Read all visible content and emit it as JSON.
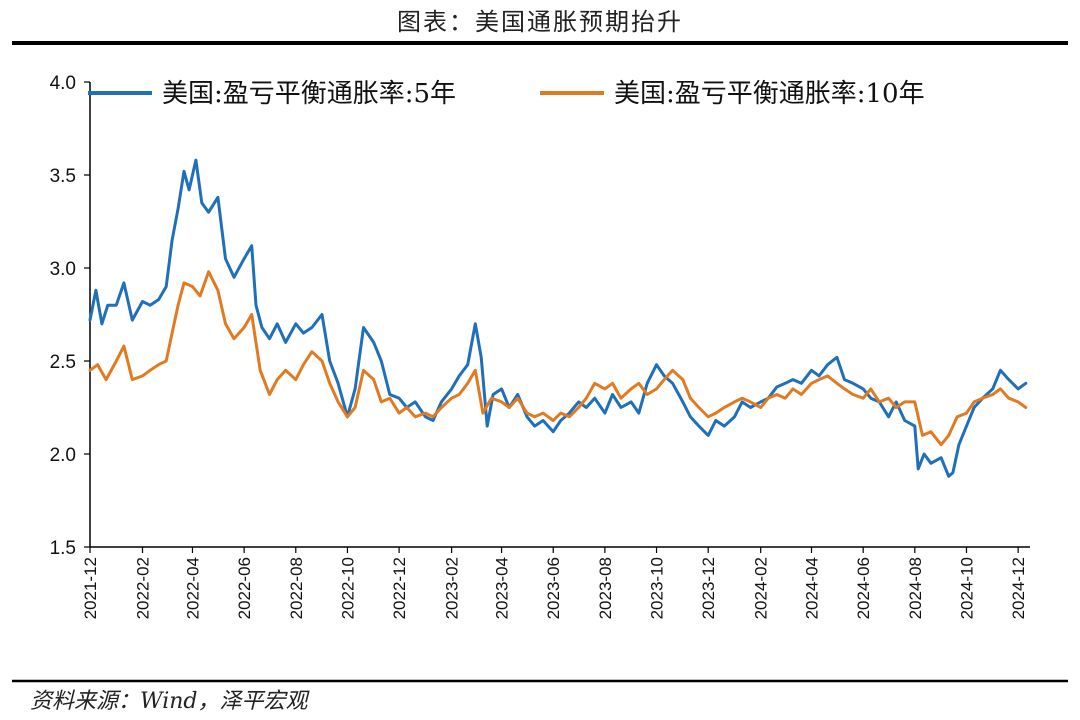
{
  "header": {
    "title": "图表：美国通胀预期抬升"
  },
  "footer": {
    "source": "资料来源：Wind，泽平宏观"
  },
  "colors": {
    "series_5y": "#1f6fba",
    "series_10y": "#e07b22",
    "axis": "#000000"
  },
  "chart_data": {
    "type": "line",
    "title": "图表：美国通胀预期抬升",
    "xlabel": "",
    "ylabel": "",
    "ylim": [
      1.5,
      4.0
    ],
    "yticks": [
      "1.5",
      "2.0",
      "2.5",
      "3.0",
      "3.5",
      "4.0"
    ],
    "xlim": [
      "2021-12-01",
      "2024-12-15"
    ],
    "xticks": [
      "2021-12",
      "2022-02",
      "2022-04",
      "2022-06",
      "2022-08",
      "2022-10",
      "2022-12",
      "2023-02",
      "2023-04",
      "2023-06",
      "2023-08",
      "2023-10",
      "2023-12",
      "2024-02",
      "2024-04",
      "2024-06",
      "2024-08",
      "2024-10",
      "2024-12"
    ],
    "grid": false,
    "legend_position": "top",
    "series": [
      {
        "name": "美国:盈亏平衡通胀率:5年",
        "color": "#1f6fba",
        "x": [
          "2021-12-01",
          "2021-12-08",
          "2021-12-15",
          "2021-12-22",
          "2022-01-01",
          "2022-01-10",
          "2022-01-20",
          "2022-02-01",
          "2022-02-10",
          "2022-02-20",
          "2022-03-01",
          "2022-03-08",
          "2022-03-15",
          "2022-03-22",
          "2022-03-28",
          "2022-04-05",
          "2022-04-12",
          "2022-04-20",
          "2022-05-01",
          "2022-05-10",
          "2022-05-20",
          "2022-06-01",
          "2022-06-10",
          "2022-06-15",
          "2022-06-22",
          "2022-07-01",
          "2022-07-10",
          "2022-07-20",
          "2022-08-01",
          "2022-08-10",
          "2022-08-20",
          "2022-09-01",
          "2022-09-10",
          "2022-09-20",
          "2022-10-01",
          "2022-10-10",
          "2022-10-20",
          "2022-11-01",
          "2022-11-10",
          "2022-11-20",
          "2022-12-01",
          "2022-12-10",
          "2022-12-20",
          "2023-01-01",
          "2023-01-10",
          "2023-01-20",
          "2023-02-01",
          "2023-02-10",
          "2023-02-20",
          "2023-03-01",
          "2023-03-08",
          "2023-03-15",
          "2023-03-22",
          "2023-04-01",
          "2023-04-10",
          "2023-04-20",
          "2023-05-01",
          "2023-05-10",
          "2023-05-20",
          "2023-06-01",
          "2023-06-10",
          "2023-06-20",
          "2023-07-01",
          "2023-07-10",
          "2023-07-20",
          "2023-08-01",
          "2023-08-10",
          "2023-08-20",
          "2023-09-01",
          "2023-09-10",
          "2023-09-20",
          "2023-10-01",
          "2023-10-10",
          "2023-10-20",
          "2023-11-01",
          "2023-11-10",
          "2023-11-20",
          "2023-12-01",
          "2023-12-10",
          "2023-12-20",
          "2024-01-01",
          "2024-01-10",
          "2024-01-20",
          "2024-02-01",
          "2024-02-10",
          "2024-02-20",
          "2024-03-01",
          "2024-03-10",
          "2024-03-20",
          "2024-04-01",
          "2024-04-10",
          "2024-04-20",
          "2024-05-01",
          "2024-05-10",
          "2024-05-20",
          "2024-06-01",
          "2024-06-10",
          "2024-06-20",
          "2024-07-01",
          "2024-07-10",
          "2024-07-20",
          "2024-08-01",
          "2024-08-05",
          "2024-08-12",
          "2024-08-20",
          "2024-09-01",
          "2024-09-10",
          "2024-09-15",
          "2024-09-22",
          "2024-10-01",
          "2024-10-10",
          "2024-10-20",
          "2024-11-01",
          "2024-11-10",
          "2024-11-20",
          "2024-12-01",
          "2024-12-10"
        ],
        "values": [
          2.72,
          2.88,
          2.7,
          2.8,
          2.8,
          2.92,
          2.72,
          2.82,
          2.8,
          2.83,
          2.9,
          3.15,
          3.32,
          3.52,
          3.42,
          3.58,
          3.35,
          3.3,
          3.38,
          3.05,
          2.95,
          3.05,
          3.12,
          2.8,
          2.68,
          2.62,
          2.7,
          2.6,
          2.7,
          2.65,
          2.68,
          2.75,
          2.5,
          2.38,
          2.2,
          2.35,
          2.68,
          2.6,
          2.5,
          2.32,
          2.3,
          2.25,
          2.28,
          2.2,
          2.18,
          2.28,
          2.35,
          2.42,
          2.48,
          2.7,
          2.52,
          2.15,
          2.32,
          2.35,
          2.25,
          2.32,
          2.2,
          2.15,
          2.18,
          2.12,
          2.18,
          2.22,
          2.28,
          2.25,
          2.3,
          2.22,
          2.32,
          2.25,
          2.28,
          2.22,
          2.38,
          2.48,
          2.42,
          2.38,
          2.28,
          2.2,
          2.15,
          2.1,
          2.18,
          2.15,
          2.2,
          2.28,
          2.25,
          2.28,
          2.3,
          2.36,
          2.38,
          2.4,
          2.38,
          2.45,
          2.42,
          2.48,
          2.52,
          2.4,
          2.38,
          2.35,
          2.3,
          2.28,
          2.2,
          2.28,
          2.18,
          2.15,
          1.92,
          2.0,
          1.95,
          1.98,
          1.88,
          1.9,
          2.05,
          2.15,
          2.25,
          2.3,
          2.35,
          2.45,
          2.4,
          2.35,
          2.38
        ]
      },
      {
        "name": "美国:盈亏平衡通胀率:10年",
        "color": "#e07b22",
        "x": [
          "2021-12-01",
          "2021-12-10",
          "2021-12-20",
          "2022-01-01",
          "2022-01-10",
          "2022-01-20",
          "2022-02-01",
          "2022-02-10",
          "2022-02-20",
          "2022-03-01",
          "2022-03-08",
          "2022-03-15",
          "2022-03-22",
          "2022-04-01",
          "2022-04-10",
          "2022-04-20",
          "2022-05-01",
          "2022-05-10",
          "2022-05-20",
          "2022-06-01",
          "2022-06-10",
          "2022-06-20",
          "2022-07-01",
          "2022-07-10",
          "2022-07-20",
          "2022-08-01",
          "2022-08-10",
          "2022-08-20",
          "2022-09-01",
          "2022-09-10",
          "2022-09-20",
          "2022-10-01",
          "2022-10-10",
          "2022-10-20",
          "2022-11-01",
          "2022-11-10",
          "2022-11-20",
          "2022-12-01",
          "2022-12-10",
          "2022-12-20",
          "2023-01-01",
          "2023-01-10",
          "2023-01-20",
          "2023-02-01",
          "2023-02-10",
          "2023-02-20",
          "2023-03-01",
          "2023-03-10",
          "2023-03-20",
          "2023-04-01",
          "2023-04-10",
          "2023-04-20",
          "2023-05-01",
          "2023-05-10",
          "2023-05-20",
          "2023-06-01",
          "2023-06-10",
          "2023-06-20",
          "2023-07-01",
          "2023-07-10",
          "2023-07-20",
          "2023-08-01",
          "2023-08-10",
          "2023-08-20",
          "2023-09-01",
          "2023-09-10",
          "2023-09-20",
          "2023-10-01",
          "2023-10-10",
          "2023-10-20",
          "2023-11-01",
          "2023-11-10",
          "2023-11-20",
          "2023-12-01",
          "2023-12-10",
          "2023-12-20",
          "2024-01-01",
          "2024-01-10",
          "2024-01-20",
          "2024-02-01",
          "2024-02-10",
          "2024-02-20",
          "2024-03-01",
          "2024-03-10",
          "2024-03-20",
          "2024-04-01",
          "2024-04-10",
          "2024-04-20",
          "2024-05-01",
          "2024-05-10",
          "2024-05-20",
          "2024-06-01",
          "2024-06-10",
          "2024-06-20",
          "2024-07-01",
          "2024-07-10",
          "2024-07-20",
          "2024-08-01",
          "2024-08-10",
          "2024-08-20",
          "2024-09-01",
          "2024-09-10",
          "2024-09-20",
          "2024-10-01",
          "2024-10-10",
          "2024-10-20",
          "2024-11-01",
          "2024-11-10",
          "2024-11-20",
          "2024-12-01",
          "2024-12-10"
        ],
        "values": [
          2.45,
          2.48,
          2.4,
          2.5,
          2.58,
          2.4,
          2.42,
          2.45,
          2.48,
          2.5,
          2.65,
          2.8,
          2.92,
          2.9,
          2.85,
          2.98,
          2.88,
          2.7,
          2.62,
          2.68,
          2.75,
          2.45,
          2.32,
          2.4,
          2.45,
          2.4,
          2.48,
          2.55,
          2.5,
          2.38,
          2.28,
          2.2,
          2.25,
          2.45,
          2.4,
          2.28,
          2.3,
          2.22,
          2.25,
          2.2,
          2.22,
          2.2,
          2.25,
          2.3,
          2.32,
          2.38,
          2.45,
          2.22,
          2.3,
          2.28,
          2.25,
          2.3,
          2.22,
          2.2,
          2.22,
          2.18,
          2.22,
          2.2,
          2.25,
          2.3,
          2.38,
          2.35,
          2.38,
          2.3,
          2.35,
          2.38,
          2.32,
          2.35,
          2.4,
          2.45,
          2.4,
          2.3,
          2.25,
          2.2,
          2.22,
          2.25,
          2.28,
          2.3,
          2.28,
          2.25,
          2.3,
          2.32,
          2.3,
          2.35,
          2.32,
          2.38,
          2.4,
          2.42,
          2.38,
          2.35,
          2.32,
          2.3,
          2.35,
          2.28,
          2.3,
          2.25,
          2.28,
          2.28,
          2.1,
          2.12,
          2.05,
          2.1,
          2.2,
          2.22,
          2.28,
          2.3,
          2.32,
          2.35,
          2.3,
          2.28,
          2.25
        ]
      }
    ]
  }
}
